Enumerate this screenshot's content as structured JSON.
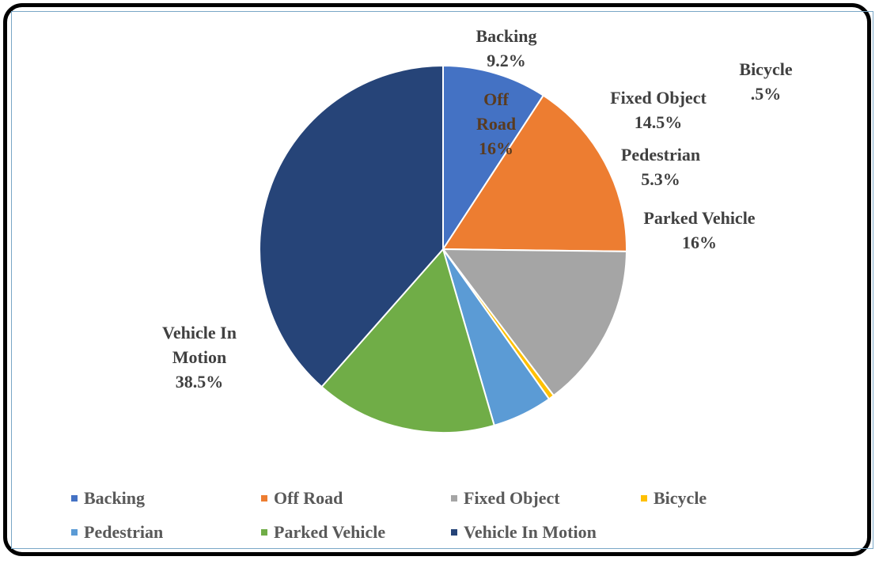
{
  "chart_data": {
    "type": "pie",
    "categories": [
      "Backing",
      "Off Road",
      "Fixed Object",
      "Bicycle",
      "Pedestrian",
      "Parked Vehicle",
      "Vehicle In Motion"
    ],
    "values": [
      9.2,
      16,
      14.5,
      0.5,
      5.3,
      16,
      38.5
    ],
    "value_labels": [
      "9.2%",
      "16%",
      "14.5%",
      ".5%",
      "5.3%",
      "16%",
      "38.5%"
    ],
    "colors": [
      "#4472c4",
      "#ed7d31",
      "#a5a5a5",
      "#ffc000",
      "#5b9bd5",
      "#70ad47",
      "#264478"
    ],
    "legend": "bottom"
  }
}
